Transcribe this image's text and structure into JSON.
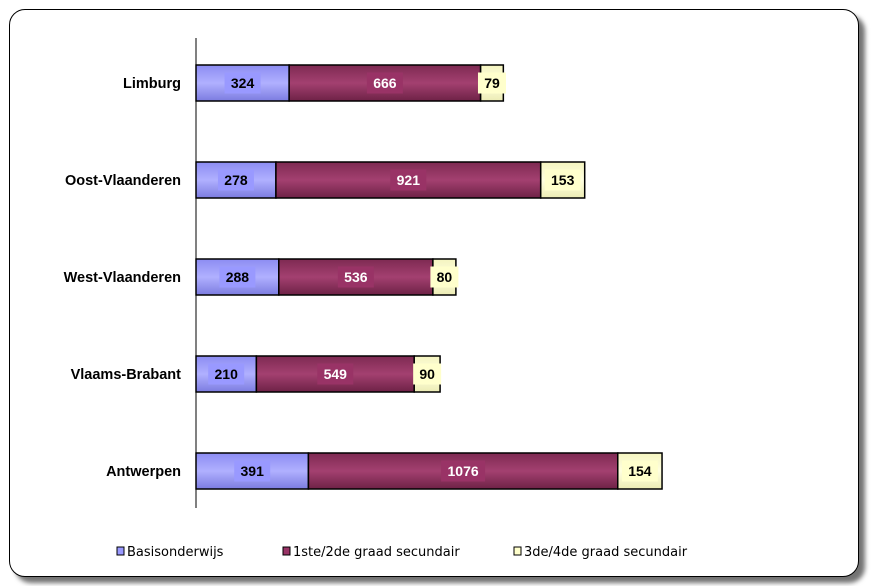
{
  "chart_data": {
    "type": "bar",
    "orientation": "horizontal",
    "stacked": true,
    "title": "",
    "xlabel": "",
    "ylabel": "",
    "categories": [
      "Limburg",
      "Oost-Vlaanderen",
      "West-Vlaanderen",
      "Vlaams-Brabant",
      "Antwerpen"
    ],
    "series": [
      {
        "name": "Basisonderwijs",
        "color": "#9999ff",
        "label_bg": "#9999ff",
        "label_color": "#000000",
        "values": [
          324,
          278,
          288,
          210,
          391
        ]
      },
      {
        "name": "1ste/2de graad secundair",
        "color": "#993366",
        "label_bg": "#993366",
        "label_color": "#ffffff",
        "values": [
          666,
          921,
          536,
          549,
          1076
        ]
      },
      {
        "name": "3de/4de graad secundair",
        "color": "#ffffcc",
        "label_bg": "#ffffcc",
        "label_color": "#000000",
        "values": [
          79,
          153,
          80,
          90,
          154
        ]
      }
    ],
    "grid": false,
    "xaxis_visible": false,
    "legend": "bottom"
  }
}
